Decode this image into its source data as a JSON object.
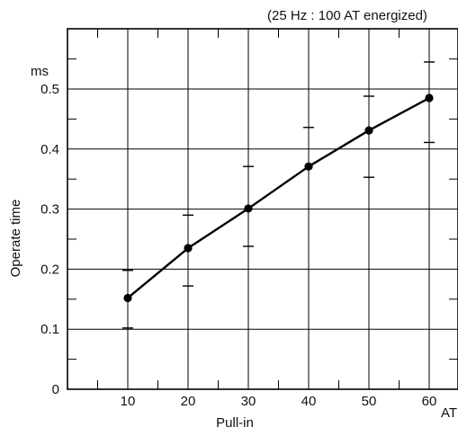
{
  "colors": {
    "line": "#000000",
    "grid": "#000000",
    "background": "#ffffff"
  },
  "chart_data": {
    "type": "line",
    "annotation": "(25 Hz : 100 AT energized)",
    "xlabel": "Pull-in",
    "xunit": "AT",
    "ylabel": "Operate time",
    "yunit": "ms",
    "xlim": [
      0,
      70
    ],
    "ylim": [
      0,
      0.55
    ],
    "x_ticks": [
      10,
      20,
      30,
      40,
      50,
      60
    ],
    "y_ticks": [
      0,
      0.1,
      0.2,
      0.3,
      0.4,
      0.5
    ],
    "y_tick_labels": [
      "0",
      "0.1",
      "0.2",
      "0.3",
      "0.4",
      "0.5"
    ],
    "grid": true,
    "series": [
      {
        "x": [
          10,
          20,
          30,
          40,
          50,
          60
        ],
        "y": [
          0.152,
          0.235,
          0.301,
          0.371,
          0.431,
          0.485
        ],
        "y_max": [
          0.198,
          0.29,
          0.371,
          0.436,
          0.488,
          0.545
        ],
        "y_min": [
          0.102,
          0.172,
          0.238,
          null,
          0.353,
          0.411
        ]
      }
    ]
  }
}
